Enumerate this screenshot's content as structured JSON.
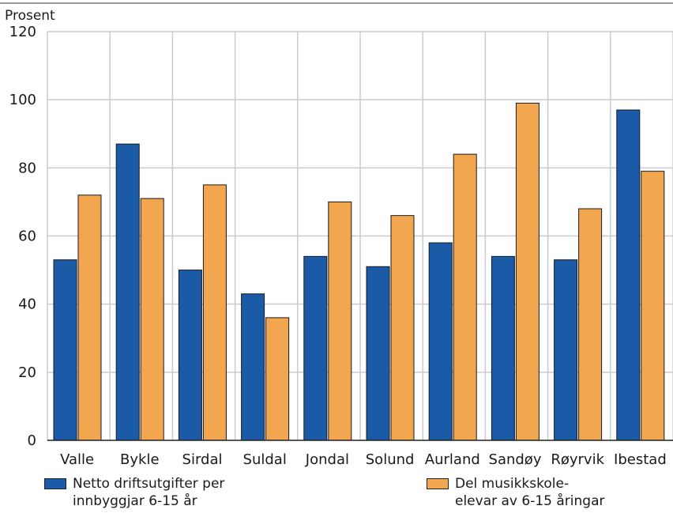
{
  "chart_data": {
    "type": "bar",
    "ylabel": "Prosent",
    "ylim": [
      0,
      120
    ],
    "yticks": [
      0,
      20,
      40,
      60,
      80,
      100,
      120
    ],
    "grid": true,
    "legend_position": "bottom",
    "categories": [
      "Valle",
      "Bykle",
      "Sirdal",
      "Suldal",
      "Jondal",
      "Solund",
      "Aurland",
      "Sandøy",
      "Røyrvik",
      "Ibestad"
    ],
    "series": [
      {
        "name_lines": [
          "Netto driftsutgifter per",
          "innbyggjar 6-15 år"
        ],
        "color": "#1a5aa6",
        "values": [
          53,
          87,
          50,
          43,
          54,
          51,
          58,
          54,
          53,
          97
        ]
      },
      {
        "name_lines": [
          "Del musikkskole-",
          "elevar av 6-15 åringar"
        ],
        "color": "#f2a650",
        "values": [
          72,
          71,
          75,
          36,
          70,
          66,
          84,
          99,
          68,
          79
        ]
      }
    ]
  }
}
